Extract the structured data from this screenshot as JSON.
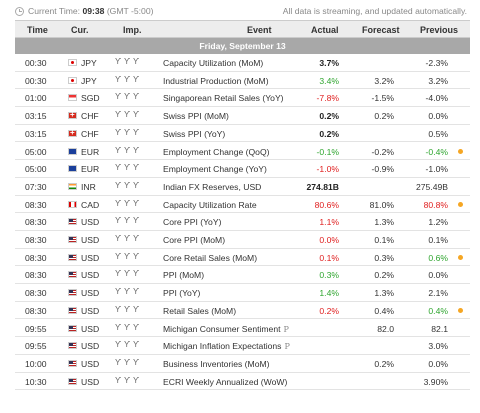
{
  "topbar": {
    "time_prefix": "Current Time: ",
    "time_value": "09:38",
    "time_suffix": " (GMT -5:00)",
    "note": "All data is streaming, and updated automatically."
  },
  "columns": {
    "time": "Time",
    "cur": "Cur.",
    "imp": "Imp.",
    "event": "Event",
    "actual": "Actual",
    "forecast": "Forecast",
    "previous": "Previous"
  },
  "day_label": "Friday, September 13",
  "colors": {
    "positive": "#2fa52f",
    "negative": "#e02020",
    "dot": "#f5a623"
  },
  "rows": [
    {
      "time": "00:30",
      "flag": "jp",
      "cur": "JPY",
      "event": "Capacity Utilization (MoM)",
      "actual": "3.7%",
      "actual_style": "bold",
      "forecast": "",
      "previous": "-2.3%",
      "prev_style": "",
      "dot": false,
      "prelim": ""
    },
    {
      "time": "00:30",
      "flag": "jp",
      "cur": "JPY",
      "event": "Industrial Production (MoM)",
      "actual": "3.4%",
      "actual_style": "green",
      "forecast": "3.2%",
      "previous": "3.2%",
      "prev_style": "",
      "dot": false,
      "prelim": ""
    },
    {
      "time": "01:00",
      "flag": "sg",
      "cur": "SGD",
      "event": "Singaporean Retail Sales (YoY)",
      "actual": "-7.8%",
      "actual_style": "red",
      "forecast": "-1.5%",
      "previous": "-4.0%",
      "prev_style": "",
      "dot": false,
      "prelim": ""
    },
    {
      "time": "03:15",
      "flag": "ch",
      "cur": "CHF",
      "event": "Swiss PPI (MoM)",
      "actual": "0.2%",
      "actual_style": "bold",
      "forecast": "0.2%",
      "previous": "0.0%",
      "prev_style": "",
      "dot": false,
      "prelim": ""
    },
    {
      "time": "03:15",
      "flag": "ch",
      "cur": "CHF",
      "event": "Swiss PPI (YoY)",
      "actual": "0.2%",
      "actual_style": "bold",
      "forecast": "",
      "previous": "0.5%",
      "prev_style": "",
      "dot": false,
      "prelim": ""
    },
    {
      "time": "05:00",
      "flag": "eu",
      "cur": "EUR",
      "event": "Employment Change (QoQ)",
      "actual": "-0.1%",
      "actual_style": "green",
      "forecast": "-0.2%",
      "previous": "-0.4%",
      "prev_style": "green",
      "dot": true,
      "prelim": ""
    },
    {
      "time": "05:00",
      "flag": "eu",
      "cur": "EUR",
      "event": "Employment Change (YoY)",
      "actual": "-1.0%",
      "actual_style": "red",
      "forecast": "-0.9%",
      "previous": "-1.0%",
      "prev_style": "",
      "dot": false,
      "prelim": ""
    },
    {
      "time": "07:30",
      "flag": "in",
      "cur": "INR",
      "event": "Indian FX Reserves, USD",
      "actual": "274.81B",
      "actual_style": "bold",
      "forecast": "",
      "previous": "275.49B",
      "prev_style": "",
      "dot": false,
      "prelim": ""
    },
    {
      "time": "08:30",
      "flag": "ca",
      "cur": "CAD",
      "event": "Capacity Utilization Rate",
      "actual": "80.6%",
      "actual_style": "red",
      "forecast": "81.0%",
      "previous": "80.8%",
      "prev_style": "red",
      "dot": true,
      "prelim": ""
    },
    {
      "time": "08:30",
      "flag": "us",
      "cur": "USD",
      "event": "Core PPI (YoY)",
      "actual": "1.1%",
      "actual_style": "red",
      "forecast": "1.3%",
      "previous": "1.2%",
      "prev_style": "",
      "dot": false,
      "prelim": ""
    },
    {
      "time": "08:30",
      "flag": "us",
      "cur": "USD",
      "event": "Core PPI (MoM)",
      "actual": "0.0%",
      "actual_style": "red",
      "forecast": "0.1%",
      "previous": "0.1%",
      "prev_style": "",
      "dot": false,
      "prelim": ""
    },
    {
      "time": "08:30",
      "flag": "us",
      "cur": "USD",
      "event": "Core Retail Sales (MoM)",
      "actual": "0.1%",
      "actual_style": "red",
      "forecast": "0.3%",
      "previous": "0.6%",
      "prev_style": "green",
      "dot": true,
      "prelim": ""
    },
    {
      "time": "08:30",
      "flag": "us",
      "cur": "USD",
      "event": "PPI (MoM)",
      "actual": "0.3%",
      "actual_style": "green",
      "forecast": "0.2%",
      "previous": "0.0%",
      "prev_style": "",
      "dot": false,
      "prelim": ""
    },
    {
      "time": "08:30",
      "flag": "us",
      "cur": "USD",
      "event": "PPI (YoY)",
      "actual": "1.4%",
      "actual_style": "green",
      "forecast": "1.3%",
      "previous": "2.1%",
      "prev_style": "",
      "dot": false,
      "prelim": ""
    },
    {
      "time": "08:30",
      "flag": "us",
      "cur": "USD",
      "event": "Retail Sales (MoM)",
      "actual": "0.2%",
      "actual_style": "red",
      "forecast": "0.4%",
      "previous": "0.4%",
      "prev_style": "green",
      "dot": true,
      "prelim": ""
    },
    {
      "time": "09:55",
      "flag": "us",
      "cur": "USD",
      "event": "Michigan Consumer Sentiment",
      "actual": "",
      "actual_style": "",
      "forecast": "82.0",
      "previous": "82.1",
      "prev_style": "",
      "dot": false,
      "prelim": "P"
    },
    {
      "time": "09:55",
      "flag": "us",
      "cur": "USD",
      "event": "Michigan Inflation Expectations",
      "actual": "",
      "actual_style": "",
      "forecast": "",
      "previous": "3.0%",
      "prev_style": "",
      "dot": false,
      "prelim": "P"
    },
    {
      "time": "10:00",
      "flag": "us",
      "cur": "USD",
      "event": "Business Inventories (MoM)",
      "actual": "",
      "actual_style": "",
      "forecast": "0.2%",
      "previous": "0.0%",
      "prev_style": "",
      "dot": false,
      "prelim": ""
    },
    {
      "time": "10:30",
      "flag": "us",
      "cur": "USD",
      "event": "ECRI Weekly Annualized (WoW)",
      "actual": "",
      "actual_style": "",
      "forecast": "",
      "previous": "3.90%",
      "prev_style": "",
      "dot": false,
      "prelim": ""
    }
  ]
}
